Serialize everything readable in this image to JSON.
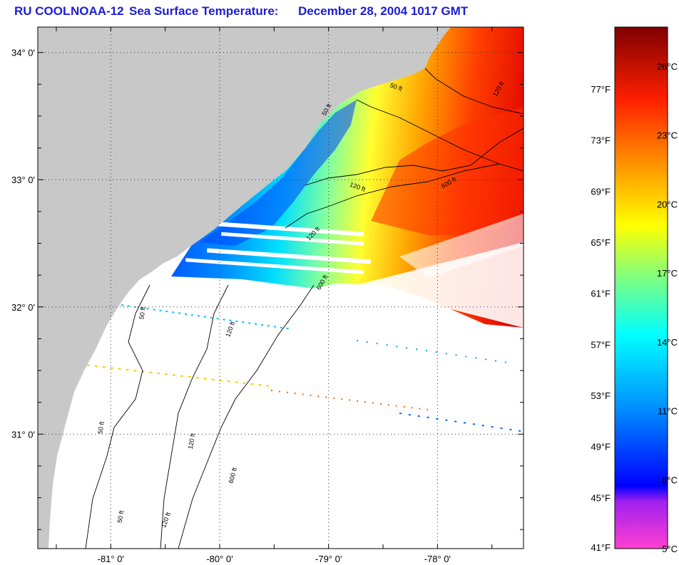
{
  "title": {
    "org": "RU COOL",
    "satellite": "NOAA-12",
    "product": "Sea Surface Temperature:",
    "date": "December 28, 2004 1017 GMT"
  },
  "map": {
    "lon_range": [
      -81.67,
      -77.21
    ],
    "lat_range": [
      30.1,
      34.2
    ],
    "lat_ticks": [
      {
        "value": 34,
        "label": "34° 0'"
      },
      {
        "value": 33,
        "label": "33° 0'"
      },
      {
        "value": 32,
        "label": "32° 0'"
      },
      {
        "value": 31,
        "label": "31° 0'"
      }
    ],
    "lon_ticks": [
      {
        "value": -81,
        "label": "-81° 0'"
      },
      {
        "value": -80,
        "label": "-80° 0'"
      },
      {
        "value": -79,
        "label": "-79° 0'"
      },
      {
        "value": -78,
        "label": "-78° 0'"
      }
    ],
    "gridlines": "dotted",
    "contour_labels": [
      {
        "text": "50 ft",
        "lon": -78.44,
        "lat": 33.73,
        "angle": 20
      },
      {
        "text": "120 ft",
        "lon": -77.46,
        "lat": 33.65,
        "angle": -60
      },
      {
        "text": "50 ft",
        "lon": -79.03,
        "lat": 33.5,
        "angle": -60
      },
      {
        "text": "120 ft",
        "lon": -78.81,
        "lat": 32.95,
        "angle": 20
      },
      {
        "text": "600 ft",
        "lon": -77.95,
        "lat": 32.93,
        "angle": -30
      },
      {
        "text": "120 ft",
        "lon": -79.18,
        "lat": 32.52,
        "angle": -45
      },
      {
        "text": "600 ft",
        "lon": -79.08,
        "lat": 32.13,
        "angle": -60
      },
      {
        "text": "50 ft",
        "lon": -80.7,
        "lat": 31.9,
        "angle": -80
      },
      {
        "text": "120 ft",
        "lon": -79.91,
        "lat": 31.76,
        "angle": -70
      },
      {
        "text": "50 ft",
        "lon": -81.08,
        "lat": 31.0,
        "angle": -80
      },
      {
        "text": "120 ft",
        "lon": -80.25,
        "lat": 30.88,
        "angle": -80
      },
      {
        "text": "600 ft",
        "lon": -79.88,
        "lat": 30.61,
        "angle": -75
      },
      {
        "text": "50 ft",
        "lon": -80.9,
        "lat": 30.3,
        "angle": -80
      },
      {
        "text": "120 ft",
        "lon": -80.5,
        "lat": 30.26,
        "angle": -70
      }
    ]
  },
  "colorbar": {
    "celsius": [
      "26°C",
      "23°C",
      "20°C",
      "17°C",
      "14°C",
      "11°C",
      "8°C",
      "5°C"
    ],
    "fahrenheit": [
      "77°F",
      "73°F",
      "69°F",
      "65°F",
      "61°F",
      "57°F",
      "53°F",
      "49°F",
      "45°F",
      "41°F"
    ],
    "range_c": [
      5,
      27.7
    ],
    "colors": [
      "#ff40d0",
      "#a020f0",
      "#0000ff",
      "#0090ff",
      "#00ffff",
      "#80ff80",
      "#ffff00",
      "#ff9900",
      "#ff2000",
      "#800000"
    ]
  },
  "colors": {
    "land": "#c8c8c8",
    "no_data": "#ffffff",
    "title": "#1c1cd8"
  }
}
